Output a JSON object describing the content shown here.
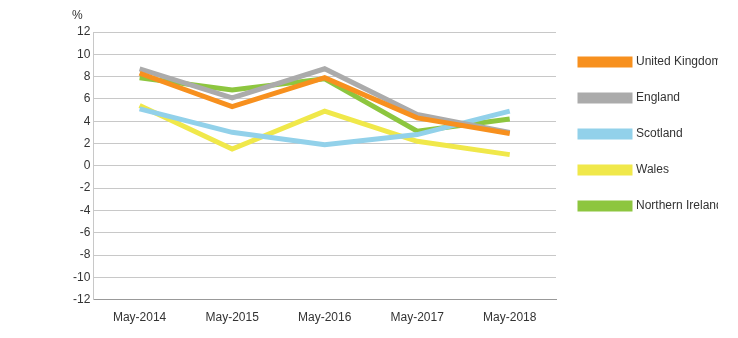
{
  "chart_data": {
    "type": "line",
    "ylabel": "%",
    "categories": [
      "May-2014",
      "May-2015",
      "May-2016",
      "May-2017",
      "May-2018"
    ],
    "series": [
      {
        "name": "United Kingdom",
        "color": "#f7901e",
        "values": [
          8.3,
          5.3,
          7.9,
          4.3,
          2.9
        ]
      },
      {
        "name": "England",
        "color": "#ababab",
        "values": [
          8.7,
          6.1,
          8.7,
          4.6,
          3.0
        ]
      },
      {
        "name": "Scotland",
        "color": "#92d1ea",
        "values": [
          5.1,
          3.0,
          1.9,
          2.8,
          4.9
        ]
      },
      {
        "name": "Wales",
        "color": "#f0e84a",
        "values": [
          5.4,
          1.5,
          4.9,
          2.2,
          1.0
        ]
      },
      {
        "name": "Northern Ireland",
        "color": "#8dc63f",
        "values": [
          7.9,
          6.8,
          7.8,
          3.1,
          4.2
        ]
      }
    ],
    "ylim": [
      -12,
      12
    ],
    "yticks": [
      -12,
      -10,
      -8,
      -6,
      -4,
      -2,
      0,
      2,
      4,
      6,
      8,
      10,
      12
    ],
    "grid": true,
    "legend": "right"
  }
}
